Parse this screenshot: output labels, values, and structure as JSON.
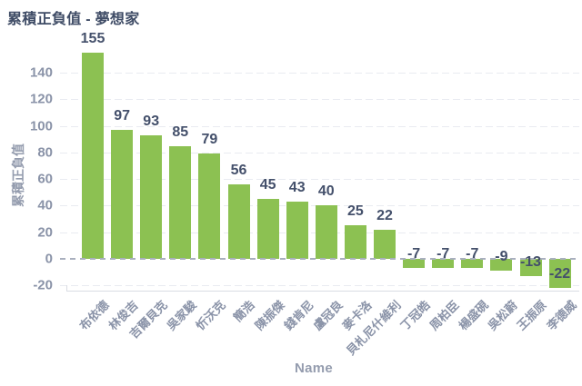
{
  "chart_data": {
    "type": "bar",
    "title": "累積正負值 - 夢想家",
    "xlabel": "Name",
    "ylabel": "累積正負值",
    "categories": [
      "布依德",
      "林俊吉",
      "吉爾貝克",
      "吳家駿",
      "忻沃克",
      "簡浩",
      "陳振傑",
      "錢肯尼",
      "盧冠良",
      "麥卡洛",
      "貝札尼什維利",
      "丁冠皓",
      "周柏臣",
      "楊盛硯",
      "吳松蔚",
      "王振原",
      "李德威"
    ],
    "values": [
      155,
      97,
      93,
      85,
      79,
      56,
      45,
      43,
      40,
      25,
      22,
      -7,
      -7,
      -7,
      -9,
      -13,
      -22
    ],
    "y_ticks": [
      140,
      120,
      100,
      80,
      60,
      40,
      20,
      0,
      -20
    ],
    "ylim": [
      -24,
      167
    ],
    "grid": "horizontal-dashed",
    "legend": "none",
    "colors": {
      "bar": "#8CC152",
      "title_text": "#3F4C66",
      "value_label_text": "#44506B",
      "tick_text": "#8A93A8",
      "axis_title_text": "#949CAE",
      "gridline": "#E9EBF1",
      "zero_line": "#A9AFBE",
      "axis_line": "#D9DCE3"
    }
  }
}
